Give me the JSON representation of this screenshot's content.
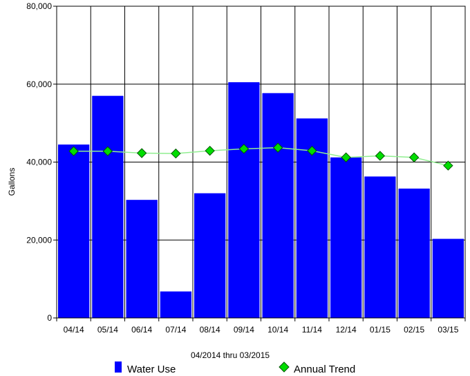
{
  "chart_data": {
    "type": "bar",
    "ylabel": "Gallons",
    "xlabel": "04/2014 thru 03/2015",
    "categories": [
      "04/14",
      "05/14",
      "06/14",
      "07/14",
      "08/14",
      "09/14",
      "10/14",
      "11/14",
      "12/14",
      "01/15",
      "02/15",
      "03/15"
    ],
    "ylim": [
      0,
      80000
    ],
    "yticks": [
      0,
      20000,
      40000,
      60000,
      80000
    ],
    "ytick_labels": [
      "0",
      "20,000",
      "40,000",
      "60,000",
      "80,000"
    ],
    "grid": true,
    "legend_position": "bottom",
    "series": [
      {
        "name": "Water Use",
        "type": "bar",
        "color": "#0000ff",
        "values": [
          44500,
          57000,
          30300,
          6800,
          32000,
          60500,
          57700,
          51200,
          41200,
          36300,
          33200,
          20300
        ]
      },
      {
        "name": "Annual Trend",
        "type": "line",
        "color": "#90ee90",
        "marker_color": "#00dd00",
        "values": [
          42800,
          42800,
          42300,
          42200,
          42900,
          43400,
          43700,
          42900,
          41200,
          41600,
          41200,
          39100
        ]
      }
    ]
  }
}
